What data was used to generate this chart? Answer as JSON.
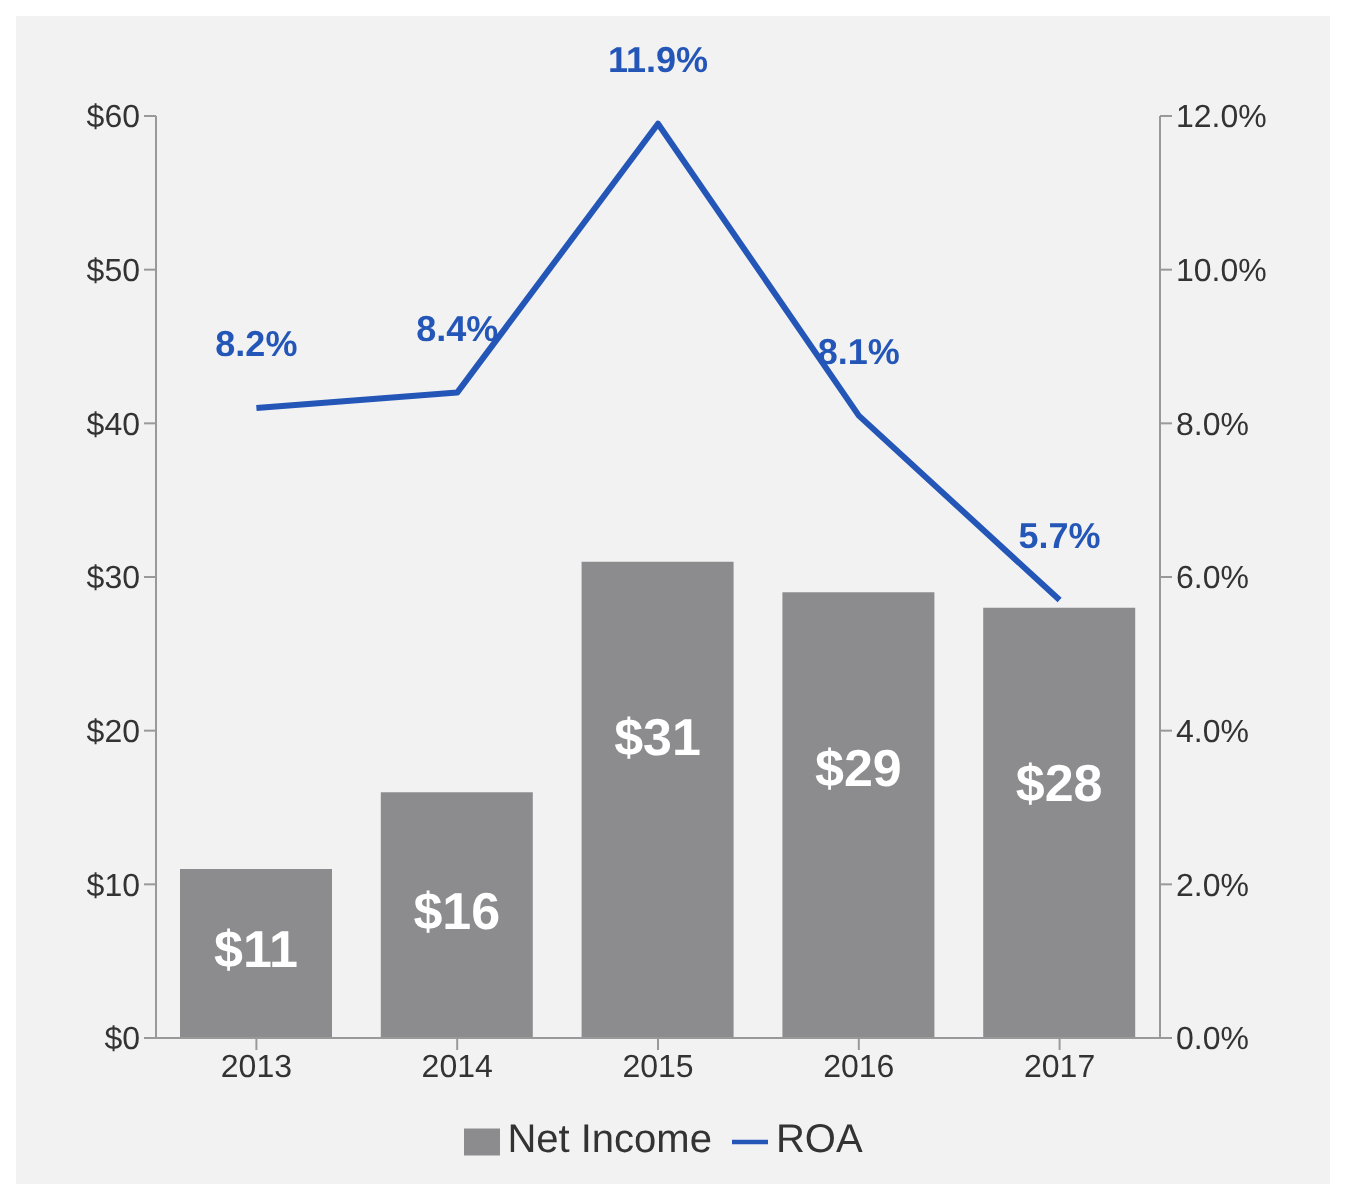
{
  "chart_data": {
    "type": "bar",
    "categories": [
      "2013",
      "2014",
      "2015",
      "2016",
      "2017"
    ],
    "series": [
      {
        "name": "Net Income",
        "color": "#8c8c8e",
        "values": [
          11,
          16,
          31,
          29,
          28
        ],
        "value_labels": [
          "$11",
          "$16",
          "$31",
          "$29",
          "$28"
        ]
      },
      {
        "name": "ROA",
        "type": "line",
        "axis": "y2",
        "color": "#2456b8",
        "values": [
          8.2,
          8.4,
          11.9,
          8.1,
          5.7
        ],
        "value_labels": [
          "8.2%",
          "8.4%",
          "11.9%",
          "8.1%",
          "5.7%"
        ]
      }
    ],
    "ylim": [
      0,
      60
    ],
    "yticks": [
      {
        "value": 0,
        "label": "$0"
      },
      {
        "value": 10,
        "label": "$10"
      },
      {
        "value": 20,
        "label": "$20"
      },
      {
        "value": 30,
        "label": "$30"
      },
      {
        "value": 40,
        "label": "$40"
      },
      {
        "value": 50,
        "label": "$50"
      },
      {
        "value": 60,
        "label": "$60"
      }
    ],
    "y2lim": [
      0,
      12
    ],
    "y2ticks": [
      {
        "value": 0,
        "label": "0.0%"
      },
      {
        "value": 2,
        "label": "2.0%"
      },
      {
        "value": 4,
        "label": "4.0%"
      },
      {
        "value": 6,
        "label": "6.0%"
      },
      {
        "value": 8,
        "label": "8.0%"
      },
      {
        "value": 10,
        "label": "10.0%"
      },
      {
        "value": 12,
        "label": "12.0%"
      }
    ],
    "grid": false,
    "legend": "bottom",
    "marker": "none"
  }
}
